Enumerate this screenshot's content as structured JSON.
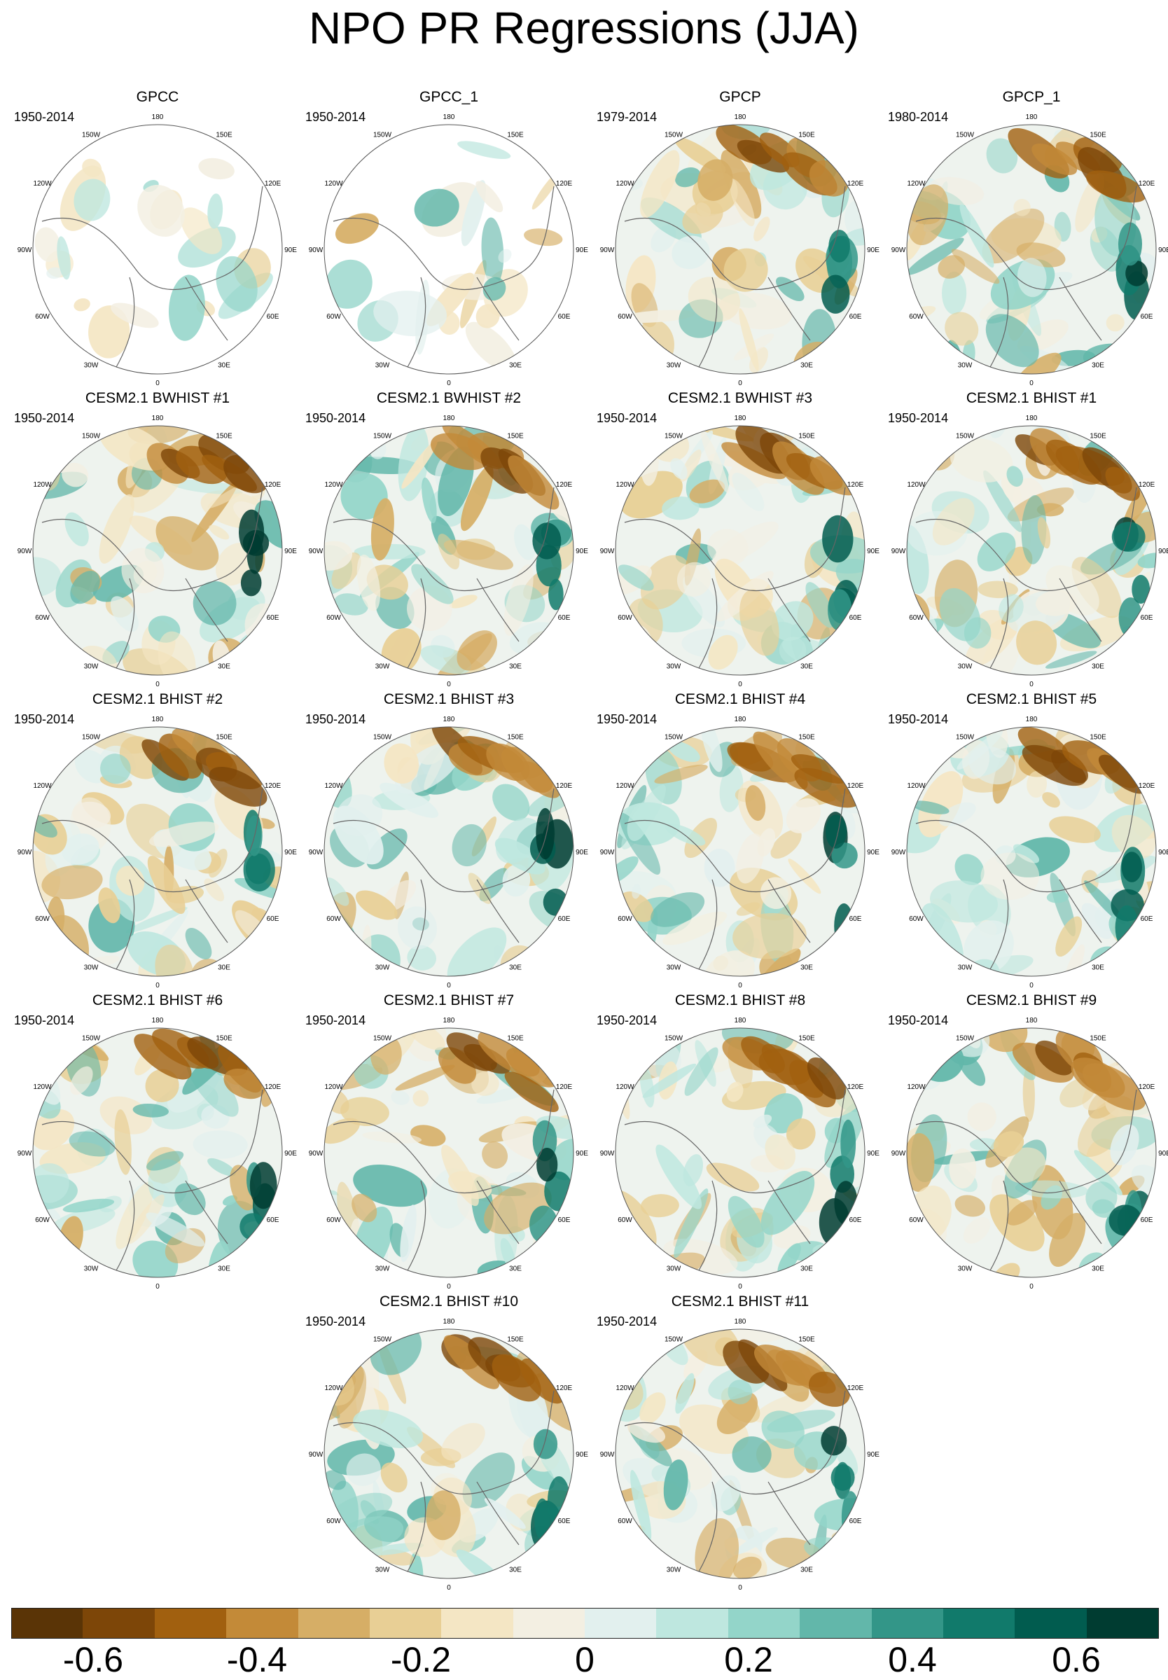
{
  "title": "NPO PR Regressions (JJA)",
  "lon_labels": [
    "180",
    "150E",
    "120E",
    "90E",
    "60E",
    "30E",
    "0",
    "30W",
    "60W",
    "90W",
    "120W",
    "150W"
  ],
  "panels": [
    {
      "title": "GPCC",
      "years": "1950-2014",
      "coverage": "land"
    },
    {
      "title": "GPCC_1",
      "years": "1950-2014",
      "coverage": "land"
    },
    {
      "title": "GPCP",
      "years": "1979-2014",
      "coverage": "global"
    },
    {
      "title": "GPCP_1",
      "years": "1980-2014",
      "coverage": "global"
    },
    {
      "title": "CESM2.1 BWHIST #1",
      "years": "1950-2014",
      "coverage": "global"
    },
    {
      "title": "CESM2.1 BWHIST #2",
      "years": "1950-2014",
      "coverage": "global"
    },
    {
      "title": "CESM2.1 BWHIST #3",
      "years": "1950-2014",
      "coverage": "global"
    },
    {
      "title": "CESM2.1 BHIST #1",
      "years": "1950-2014",
      "coverage": "global"
    },
    {
      "title": "CESM2.1 BHIST #2",
      "years": "1950-2014",
      "coverage": "global"
    },
    {
      "title": "CESM2.1 BHIST #3",
      "years": "1950-2014",
      "coverage": "global"
    },
    {
      "title": "CESM2.1 BHIST #4",
      "years": "1950-2014",
      "coverage": "global"
    },
    {
      "title": "CESM2.1 BHIST #5",
      "years": "1950-2014",
      "coverage": "global"
    },
    {
      "title": "CESM2.1 BHIST #6",
      "years": "1950-2014",
      "coverage": "global"
    },
    {
      "title": "CESM2.1 BHIST #7",
      "years": "1950-2014",
      "coverage": "global"
    },
    {
      "title": "CESM2.1 BHIST #8",
      "years": "1950-2014",
      "coverage": "global"
    },
    {
      "title": "CESM2.1 BHIST #9",
      "years": "1950-2014",
      "coverage": "global"
    },
    {
      "title": "CESM2.1 BHIST #10",
      "years": "1950-2014",
      "coverage": "global"
    },
    {
      "title": "CESM2.1 BHIST #11",
      "years": "1950-2014",
      "coverage": "global"
    }
  ],
  "colorbar": {
    "colors": [
      "#5a3406",
      "#7d4608",
      "#a1600f",
      "#c38a38",
      "#d6ae66",
      "#e8cf95",
      "#f4e6c4",
      "#f3efe2",
      "#e2f0ee",
      "#bee7df",
      "#93d5c9",
      "#62b7aa",
      "#339688",
      "#117a6b",
      "#015c4f",
      "#003c31"
    ],
    "tick_labels": [
      "-0.6",
      "-0.4",
      "-0.2",
      "0",
      "0.2",
      "0.4",
      "0.6"
    ],
    "tick_values": [
      -0.6,
      -0.4,
      -0.2,
      0,
      0.2,
      0.4,
      0.6
    ],
    "min": -0.7,
    "max": 0.7
  }
}
